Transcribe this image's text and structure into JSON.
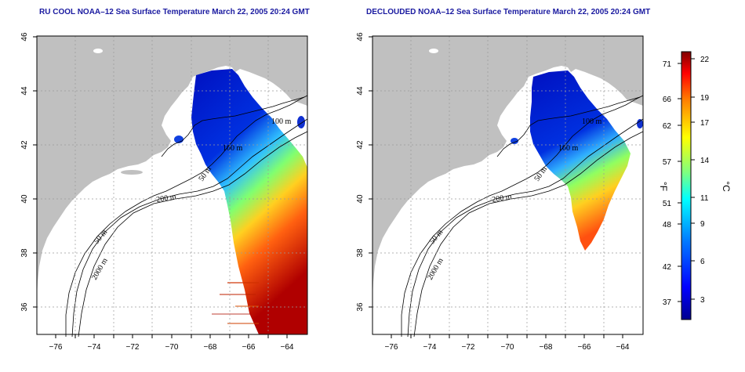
{
  "titles": {
    "left": "RU COOL NOAA–12 Sea Surface Temperature March 22, 2005 20:24 GMT",
    "right": "DECLOUDED NOAA–12 Sea Surface Temperature March 22, 2005 20:24 GMT"
  },
  "axes": {
    "lon_ticks": [
      "−76",
      "−74",
      "−72",
      "−70",
      "−68",
      "−66",
      "−64"
    ],
    "lat_ticks": [
      "36",
      "38",
      "40",
      "42",
      "44",
      "46"
    ],
    "lon_range": [
      -77,
      -63
    ],
    "lat_range": [
      35,
      46
    ]
  },
  "contours": {
    "left": [
      "50 m",
      "200 m",
      "50 m",
      "2000 m",
      "100 m",
      "100 m"
    ],
    "right": [
      "50 m",
      "200 m",
      "50 m",
      "2000 m",
      "100 m",
      "100 m"
    ]
  },
  "colorbar": {
    "fahrenheit_ticks": [
      "71",
      "66",
      "62",
      "57",
      "51",
      "48",
      "42",
      "37"
    ],
    "celsius_ticks": [
      "22",
      "19",
      "17",
      "14",
      "11",
      "9",
      "6",
      "3"
    ],
    "unit_f": "°F",
    "unit_c": "°C",
    "colors": [
      "#00008f",
      "#0000ff",
      "#007fff",
      "#00ffff",
      "#7fff7f",
      "#ffff00",
      "#ff7f00",
      "#ff0000",
      "#7f0000"
    ]
  },
  "colors": {
    "land": "#c0c0c0",
    "grid": "#c8c8c8",
    "title": "#1a1aa0"
  }
}
